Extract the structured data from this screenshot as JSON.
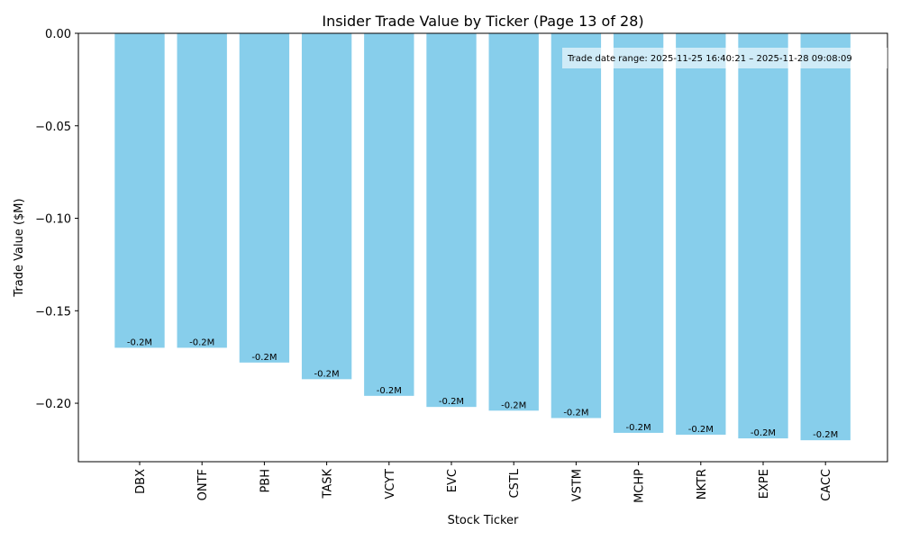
{
  "chart_data": {
    "type": "bar",
    "title": "Insider Trade Value by Ticker (Page 13 of 28)",
    "x_label": "Stock Ticker",
    "y_label": "Trade Value ($M)",
    "annotation": "Trade date range: 2025-11-25 16:40:21 – 2025-11-28 09:08:09",
    "categories": [
      "DBX",
      "ONTF",
      "PBH",
      "TASK",
      "VCYT",
      "EVC",
      "CSTL",
      "VSTM",
      "MCHP",
      "NKTR",
      "EXPE",
      "CACC"
    ],
    "values": [
      -0.17,
      -0.17,
      -0.178,
      -0.187,
      -0.196,
      -0.202,
      -0.204,
      -0.208,
      -0.216,
      -0.217,
      -0.219,
      -0.22
    ],
    "value_labels": [
      "-0.2M",
      "-0.2M",
      "-0.2M",
      "-0.2M",
      "-0.2M",
      "-0.2M",
      "-0.2M",
      "-0.2M",
      "-0.2M",
      "-0.2M",
      "-0.2M",
      "-0.2M"
    ],
    "color": "#87ceeb",
    "ylim": [
      -0.2316,
      0
    ],
    "yticks": [
      {
        "value": 0,
        "label": "0.00"
      },
      {
        "value": -0.05,
        "label": "−0.05"
      },
      {
        "value": -0.1,
        "label": "−0.10"
      },
      {
        "value": -0.15,
        "label": "−0.15"
      },
      {
        "value": -0.2,
        "label": "−0.20"
      }
    ],
    "grid": false
  }
}
